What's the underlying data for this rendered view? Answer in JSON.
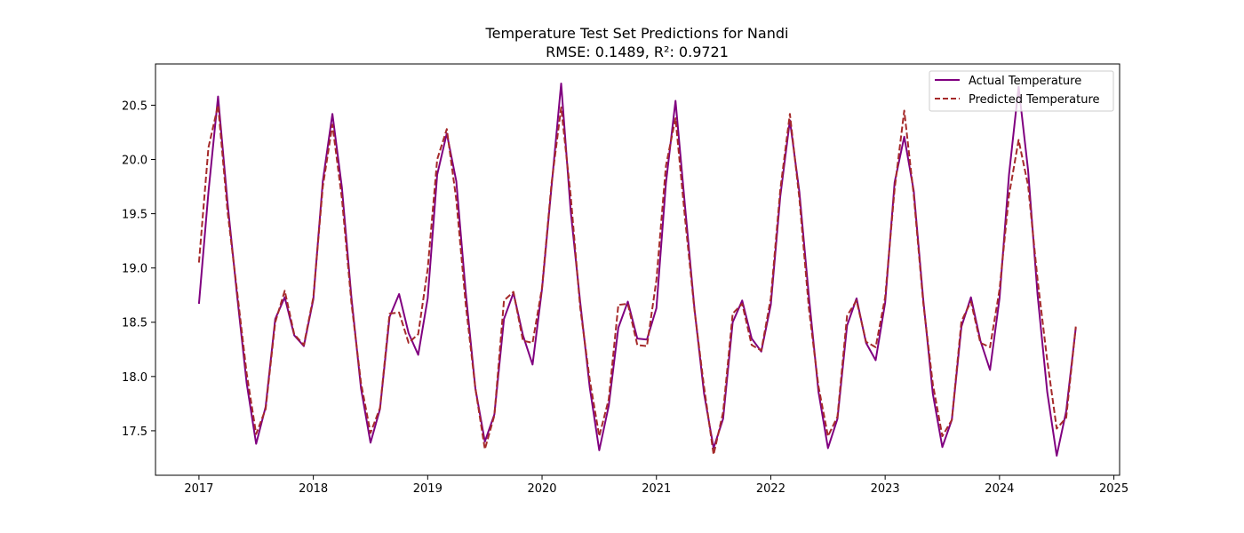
{
  "colors": {
    "actual": "#800080",
    "predicted": "#a52a2a",
    "axes": "#000000",
    "legend_border": "#cccccc",
    "background": "#ffffff"
  },
  "chart_data": {
    "type": "line",
    "title": "Temperature Test Set Predictions for Nandi",
    "subtitle": "RMSE: 0.1489, R²: 0.9721",
    "xlabel": "",
    "ylabel": "",
    "xlim": [
      2016.62,
      2025.05
    ],
    "ylim": [
      17.09,
      20.88
    ],
    "x_ticks": [
      2017,
      2018,
      2019,
      2020,
      2021,
      2022,
      2023,
      2024,
      2025
    ],
    "x_tick_labels": [
      "2017",
      "2018",
      "2019",
      "2020",
      "2021",
      "2022",
      "2023",
      "2024",
      "2025"
    ],
    "y_ticks": [
      17.5,
      18.0,
      18.5,
      19.0,
      19.5,
      20.0,
      20.5
    ],
    "y_tick_labels": [
      "17.5",
      "18.0",
      "18.5",
      "19.0",
      "19.5",
      "20.0",
      "20.5"
    ],
    "grid": false,
    "legend_position": "top-right",
    "x_unit": "decimal year (one point per month, starting January 2017)",
    "x": [
      2017.0,
      2017.083,
      2017.167,
      2017.25,
      2017.333,
      2017.417,
      2017.5,
      2017.583,
      2017.667,
      2017.75,
      2017.833,
      2017.917,
      2018.0,
      2018.083,
      2018.167,
      2018.25,
      2018.333,
      2018.417,
      2018.5,
      2018.583,
      2018.667,
      2018.75,
      2018.833,
      2018.917,
      2019.0,
      2019.083,
      2019.167,
      2019.25,
      2019.333,
      2019.417,
      2019.5,
      2019.583,
      2019.667,
      2019.75,
      2019.833,
      2019.917,
      2020.0,
      2020.083,
      2020.167,
      2020.25,
      2020.333,
      2020.417,
      2020.5,
      2020.583,
      2020.667,
      2020.75,
      2020.833,
      2020.917,
      2021.0,
      2021.083,
      2021.167,
      2021.25,
      2021.333,
      2021.417,
      2021.5,
      2021.583,
      2021.667,
      2021.75,
      2021.833,
      2021.917,
      2022.0,
      2022.083,
      2022.167,
      2022.25,
      2022.333,
      2022.417,
      2022.5,
      2022.583,
      2022.667,
      2022.75,
      2022.833,
      2022.917,
      2023.0,
      2023.083,
      2023.167,
      2023.25,
      2023.333,
      2023.417,
      2023.5,
      2023.583,
      2023.667,
      2023.75,
      2023.833,
      2023.917,
      2024.0,
      2024.083,
      2024.167,
      2024.25,
      2024.333,
      2024.417,
      2024.5,
      2024.583,
      2024.667
    ],
    "series": [
      {
        "name": "Actual Temperature",
        "style": "solid",
        "color": "#800080",
        "values": [
          18.67,
          19.7,
          20.58,
          19.6,
          18.75,
          17.94,
          17.38,
          17.72,
          18.53,
          18.73,
          18.38,
          18.28,
          18.71,
          19.8,
          20.42,
          19.74,
          18.73,
          17.89,
          17.39,
          17.7,
          18.55,
          18.76,
          18.4,
          18.2,
          18.72,
          19.86,
          20.24,
          19.8,
          18.77,
          17.89,
          17.4,
          17.65,
          18.53,
          18.77,
          18.38,
          18.11,
          18.81,
          19.75,
          20.7,
          19.53,
          18.69,
          17.9,
          17.32,
          17.73,
          18.45,
          18.69,
          18.35,
          18.34,
          18.63,
          19.78,
          20.54,
          19.57,
          18.62,
          17.84,
          17.34,
          17.61,
          18.5,
          18.7,
          18.35,
          18.23,
          18.66,
          19.66,
          20.36,
          19.7,
          18.74,
          17.86,
          17.34,
          17.61,
          18.47,
          18.72,
          18.31,
          18.15,
          18.68,
          19.79,
          20.21,
          19.71,
          18.71,
          17.84,
          17.35,
          17.6,
          18.46,
          18.73,
          18.33,
          18.06,
          18.72,
          19.86,
          20.67,
          19.9,
          18.75,
          17.86,
          17.27,
          17.68,
          18.45
        ]
      },
      {
        "name": "Predicted Temperature",
        "style": "dashed",
        "color": "#a52a2a",
        "values": [
          19.05,
          20.11,
          20.5,
          19.52,
          18.79,
          18.03,
          17.47,
          17.7,
          18.5,
          18.79,
          18.39,
          18.29,
          18.73,
          19.75,
          20.32,
          19.64,
          18.68,
          17.94,
          17.48,
          17.71,
          18.58,
          18.59,
          18.31,
          18.39,
          18.99,
          20.0,
          20.28,
          19.63,
          18.66,
          17.89,
          17.33,
          17.64,
          18.7,
          18.78,
          18.33,
          18.31,
          18.82,
          19.78,
          20.48,
          19.67,
          18.64,
          17.97,
          17.45,
          17.79,
          18.66,
          18.67,
          18.29,
          18.28,
          18.89,
          19.94,
          20.38,
          19.46,
          18.61,
          17.9,
          17.28,
          17.67,
          18.58,
          18.67,
          18.29,
          18.24,
          18.72,
          19.72,
          20.42,
          19.64,
          18.63,
          17.91,
          17.45,
          17.63,
          18.56,
          18.7,
          18.32,
          18.27,
          18.73,
          19.73,
          20.45,
          19.67,
          18.68,
          17.93,
          17.45,
          17.6,
          18.51,
          18.69,
          18.31,
          18.27,
          18.8,
          19.67,
          20.18,
          19.76,
          18.89,
          18.15,
          17.52,
          17.62,
          18.46
        ]
      }
    ]
  }
}
